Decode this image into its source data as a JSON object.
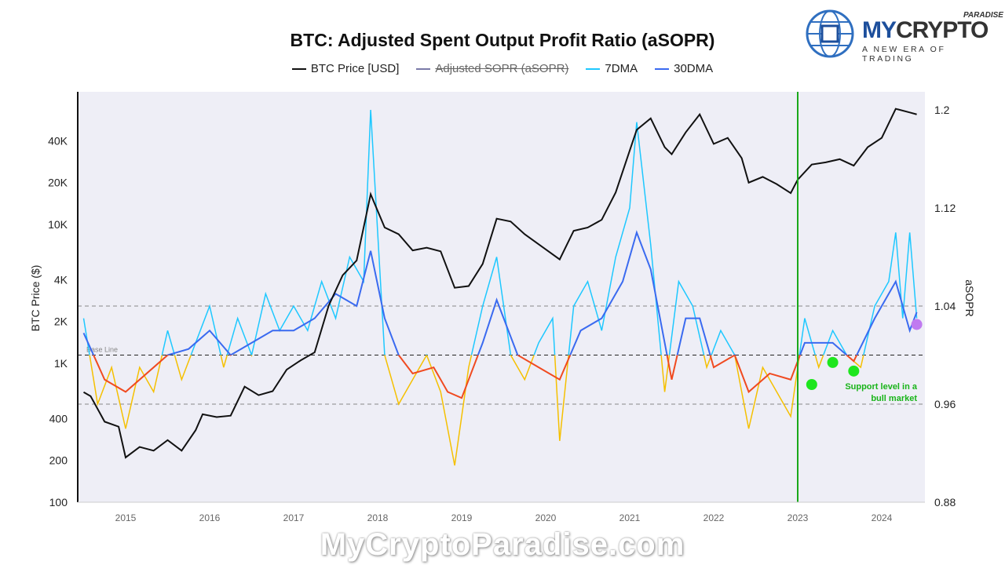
{
  "chart_data": {
    "type": "line",
    "title": "BTC: Adjusted Spent Output Profit Ratio (aSOPR)",
    "ylabel": "BTC Price ($)",
    "y2label": "aSOPR",
    "yscale": "log",
    "ylim": [
      100,
      90000
    ],
    "y2lim": [
      0.88,
      1.22
    ],
    "xlim": [
      "2014-07",
      "2024-07"
    ],
    "x_ticks": [
      "2015",
      "2016",
      "2017",
      "2018",
      "2019",
      "2020",
      "2021",
      "2022",
      "2023",
      "2024"
    ],
    "y_ticks": [
      {
        "v": 100,
        "l": "100"
      },
      {
        "v": 200,
        "l": "200"
      },
      {
        "v": 400,
        "l": "400"
      },
      {
        "v": 1000,
        "l": "1K"
      },
      {
        "v": 2000,
        "l": "2K"
      },
      {
        "v": 4000,
        "l": "4K"
      },
      {
        "v": 10000,
        "l": "10K"
      },
      {
        "v": 20000,
        "l": "20K"
      },
      {
        "v": 40000,
        "l": "40K"
      }
    ],
    "y2_ticks": [
      {
        "v": 0.88,
        "l": "0.88"
      },
      {
        "v": 0.96,
        "l": "0.96"
      },
      {
        "v": 1.04,
        "l": "1.04"
      },
      {
        "v": 1.12,
        "l": "1.12"
      },
      {
        "v": 1.2,
        "l": "1.2"
      }
    ],
    "legend": [
      "BTC Price [USD]",
      "Adjusted SOPR (aSOPR)",
      "7DMA",
      "30DMA"
    ],
    "legend_position": "top",
    "colors": {
      "price": "#111111",
      "asopr": "#7a7aa8",
      "dma7": "#1ec8ff",
      "dma30": "#3a6af0",
      "below7": "#f5c000",
      "below30": "#f04a20",
      "vline": "#1aa81a",
      "dot": "#1ee61e",
      "purple": "#c07af0",
      "bg": "#eeeef6"
    },
    "baseline": {
      "value": 1.0,
      "label": "Base Line"
    },
    "ref_lines": [
      1.04,
      0.96
    ],
    "price": {
      "x": [
        "2014-07",
        "2014-08",
        "2014-10",
        "2014-12",
        "2015-01",
        "2015-03",
        "2015-05",
        "2015-07",
        "2015-09",
        "2015-11",
        "2015-12",
        "2016-02",
        "2016-04",
        "2016-06",
        "2016-08",
        "2016-10",
        "2016-12",
        "2017-02",
        "2017-04",
        "2017-06",
        "2017-08",
        "2017-10",
        "2017-12",
        "2018-02",
        "2018-04",
        "2018-06",
        "2018-08",
        "2018-10",
        "2018-12",
        "2019-02",
        "2019-04",
        "2019-06",
        "2019-08",
        "2019-10",
        "2019-12",
        "2020-03",
        "2020-05",
        "2020-07",
        "2020-09",
        "2020-11",
        "2021-01",
        "2021-02",
        "2021-04",
        "2021-06",
        "2021-07",
        "2021-09",
        "2021-11",
        "2022-01",
        "2022-03",
        "2022-05",
        "2022-06",
        "2022-08",
        "2022-10",
        "2022-12",
        "2023-01",
        "2023-03",
        "2023-05",
        "2023-07",
        "2023-09",
        "2023-11",
        "2024-01",
        "2024-03",
        "2024-05",
        "2024-06"
      ],
      "y": [
        620,
        580,
        380,
        350,
        210,
        250,
        235,
        280,
        235,
        330,
        430,
        410,
        420,
        680,
        590,
        630,
        900,
        1050,
        1200,
        2600,
        4300,
        5500,
        16500,
        9500,
        8500,
        6500,
        6800,
        6400,
        3500,
        3600,
        5200,
        11000,
        10500,
        8500,
        7200,
        5600,
        9000,
        9500,
        10800,
        17000,
        34000,
        48000,
        58000,
        36000,
        32000,
        46000,
        62000,
        38000,
        42000,
        30000,
        20000,
        22000,
        19500,
        16800,
        21000,
        27000,
        28000,
        29500,
        26500,
        36000,
        42000,
        68000,
        64000,
        62000
      ]
    },
    "asopr_30dma": {
      "x": [
        "2014-07",
        "2014-10",
        "2015-01",
        "2015-04",
        "2015-07",
        "2015-10",
        "2016-01",
        "2016-04",
        "2016-07",
        "2016-10",
        "2017-01",
        "2017-04",
        "2017-07",
        "2017-10",
        "2017-12",
        "2018-02",
        "2018-04",
        "2018-06",
        "2018-09",
        "2018-11",
        "2019-01",
        "2019-04",
        "2019-06",
        "2019-09",
        "2019-12",
        "2020-03",
        "2020-06",
        "2020-09",
        "2020-12",
        "2021-02",
        "2021-04",
        "2021-07",
        "2021-09",
        "2021-11",
        "2022-01",
        "2022-04",
        "2022-06",
        "2022-09",
        "2022-12",
        "2023-02",
        "2023-06",
        "2023-09",
        "2023-12",
        "2024-03",
        "2024-05",
        "2024-06"
      ],
      "y": [
        1.018,
        0.98,
        0.97,
        0.985,
        1.0,
        1.005,
        1.02,
        1.0,
        1.01,
        1.02,
        1.02,
        1.03,
        1.05,
        1.04,
        1.085,
        1.03,
        1.0,
        0.985,
        0.99,
        0.97,
        0.965,
        1.01,
        1.045,
        1.0,
        0.99,
        0.98,
        1.02,
        1.03,
        1.06,
        1.1,
        1.07,
        0.98,
        1.03,
        1.03,
        0.99,
        1.0,
        0.97,
        0.985,
        0.98,
        1.01,
        1.01,
        0.995,
        1.03,
        1.06,
        1.02,
        1.035
      ]
    },
    "asopr_7dma": {
      "x": [
        "2014-07",
        "2014-09",
        "2014-11",
        "2015-01",
        "2015-03",
        "2015-05",
        "2015-07",
        "2015-09",
        "2015-11",
        "2016-01",
        "2016-03",
        "2016-05",
        "2016-07",
        "2016-09",
        "2016-11",
        "2017-01",
        "2017-03",
        "2017-05",
        "2017-07",
        "2017-09",
        "2017-11",
        "2017-12",
        "2018-02",
        "2018-04",
        "2018-06",
        "2018-08",
        "2018-10",
        "2018-12",
        "2019-02",
        "2019-04",
        "2019-06",
        "2019-08",
        "2019-10",
        "2019-12",
        "2020-02",
        "2020-03",
        "2020-05",
        "2020-07",
        "2020-09",
        "2020-11",
        "2021-01",
        "2021-02",
        "2021-04",
        "2021-06",
        "2021-08",
        "2021-10",
        "2021-12",
        "2022-02",
        "2022-04",
        "2022-06",
        "2022-08",
        "2022-10",
        "2022-12",
        "2023-02",
        "2023-04",
        "2023-06",
        "2023-08",
        "2023-10",
        "2023-12",
        "2024-02",
        "2024-03",
        "2024-04",
        "2024-05",
        "2024-06"
      ],
      "y": [
        1.03,
        0.96,
        0.99,
        0.94,
        0.99,
        0.97,
        1.02,
        0.98,
        1.01,
        1.04,
        0.99,
        1.03,
        1.0,
        1.05,
        1.02,
        1.04,
        1.02,
        1.06,
        1.03,
        1.08,
        1.06,
        1.2,
        1.0,
        0.96,
        0.98,
        1.0,
        0.97,
        0.91,
        0.99,
        1.04,
        1.08,
        1.0,
        0.98,
        1.01,
        1.03,
        0.93,
        1.04,
        1.06,
        1.02,
        1.08,
        1.12,
        1.19,
        1.09,
        0.97,
        1.06,
        1.04,
        0.99,
        1.02,
        1.0,
        0.94,
        0.99,
        0.97,
        0.95,
        1.03,
        0.99,
        1.02,
        1.0,
        0.99,
        1.04,
        1.06,
        1.1,
        1.03,
        1.1,
        1.03
      ]
    },
    "annotations": {
      "vertical_line": "2023-01",
      "support_dots": [
        {
          "x": "2023-03",
          "y": 0.976
        },
        {
          "x": "2023-06",
          "y": 0.994
        },
        {
          "x": "2023-09",
          "y": 0.987
        }
      ],
      "purple_dot": {
        "x": "2024-06",
        "y": 1.025
      },
      "support_text": [
        "Support level in a",
        "bull market"
      ]
    }
  },
  "logo": {
    "brand_a": "MY",
    "brand_b": "CRYPTO",
    "sup": "PARADISE",
    "tagline": "A NEW ERA OF TRADING"
  },
  "watermark": "MyCryptoParadise.com"
}
